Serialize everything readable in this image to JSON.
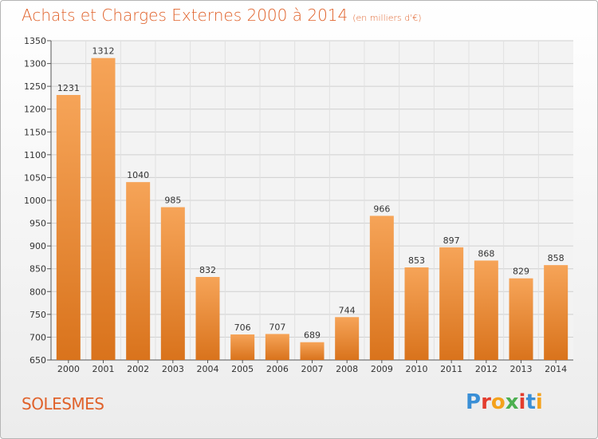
{
  "header": {
    "title": "Achats et Charges Externes 2000 à 2014",
    "unit": "(en milliers d'€)"
  },
  "footer": {
    "place": "SOLESMES",
    "brand": "Proxiti"
  },
  "colors": {
    "title": "#e0622b",
    "bar_top": "#f6a458",
    "bar_bottom": "#d9731c",
    "grid": "#d0d0d0"
  },
  "chart_data": {
    "type": "bar",
    "categories": [
      "2000",
      "2001",
      "2002",
      "2003",
      "2004",
      "2005",
      "2006",
      "2007",
      "2008",
      "2009",
      "2010",
      "2011",
      "2012",
      "2013",
      "2014"
    ],
    "values": [
      1231,
      1312,
      1040,
      985,
      832,
      706,
      707,
      689,
      744,
      966,
      853,
      897,
      868,
      829,
      858
    ],
    "title": "Achats et Charges Externes 2000 à 2014",
    "ylim": [
      650,
      1350
    ],
    "yticks": [
      650,
      700,
      750,
      800,
      850,
      900,
      950,
      1000,
      1050,
      1100,
      1150,
      1200,
      1250,
      1300,
      1350
    ],
    "grid": true,
    "data_labels": true
  }
}
